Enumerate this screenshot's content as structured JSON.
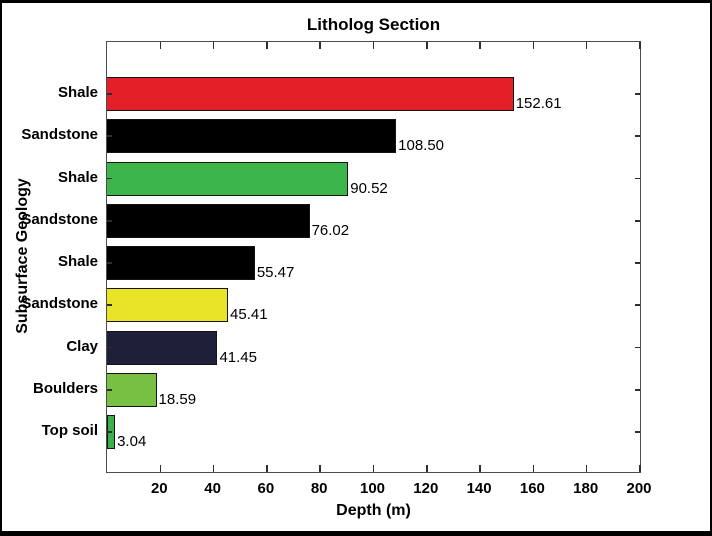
{
  "chart_data": {
    "type": "bar",
    "orientation": "horizontal",
    "title": "Litholog Section",
    "xlabel": "Depth (m)",
    "ylabel": "Subsurface Geology",
    "xlim": [
      0,
      200
    ],
    "xticks": [
      20,
      40,
      60,
      80,
      100,
      120,
      140,
      160,
      180,
      200
    ],
    "grid": false,
    "legend": "none",
    "categories": [
      "Shale",
      "Sandstone",
      "Shale",
      "Sandstone",
      "Shale",
      "Sandstone",
      "Clay",
      "Boulders",
      "Top soil"
    ],
    "values": [
      152.61,
      108.5,
      90.52,
      76.02,
      55.47,
      45.41,
      41.45,
      18.59,
      3.04
    ],
    "value_labels": [
      "152.61",
      "108.50",
      "90.52",
      "76.02",
      "55.47",
      "45.41",
      "41.45",
      "18.59",
      "3.04"
    ],
    "bar_colors": [
      "#e32028",
      "#000000",
      "#3cb54a",
      "#000000",
      "#000000",
      "#e8e428",
      "#1f1f3a",
      "#78c043",
      "#3cae4e"
    ]
  },
  "colors": {
    "background": "#ffffff",
    "frame_border": "#000000",
    "axis_box": "#4d4d4d",
    "tick": "#2e2e2e",
    "text": "#000000"
  }
}
